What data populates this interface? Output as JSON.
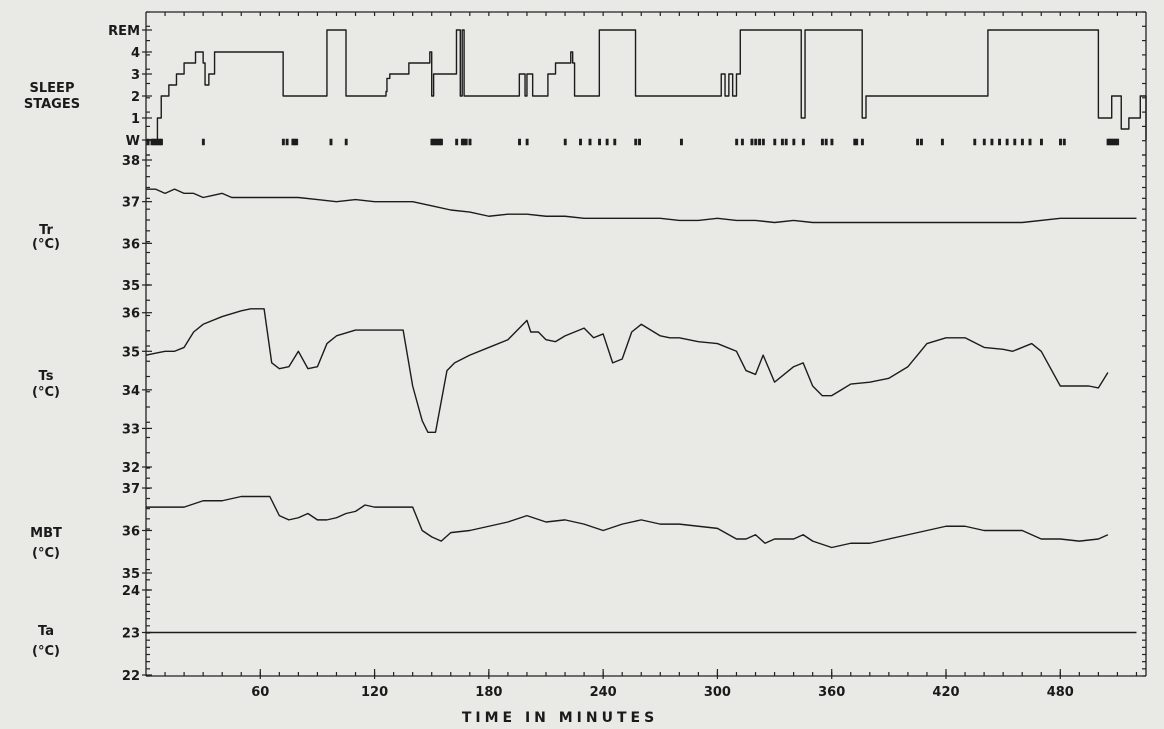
{
  "chart_data": {
    "type": "line",
    "xlabel": "TIME IN MINUTES",
    "xlim": [
      0,
      525
    ],
    "xticks": [
      60,
      120,
      180,
      240,
      300,
      360,
      420,
      480
    ],
    "panels": [
      {
        "id": "sleep",
        "label_lines": [
          "SLEEP",
          "STAGES"
        ],
        "ytick_labels": [
          "W",
          "1",
          "2",
          "3",
          "4",
          "REM"
        ],
        "ylim": [
          0,
          5
        ],
        "series": [
          {
            "name": "",
            "step": true,
            "x": [
              0,
              6,
              8,
              12,
              16,
              20,
              26,
              30,
              31,
              33,
              36,
              43,
              72,
              73,
              95,
              100,
              105,
              125,
              126,
              126.5,
              128,
              134,
              138,
              149,
              150,
              151,
              155,
              163,
              165,
              166,
              167,
              195,
              196,
              199,
              200,
              203,
              211,
              215,
              223,
              224,
              225,
              227,
              238,
              257,
              300,
              302,
              304,
              306,
              308,
              310,
              312,
              342,
              344,
              346,
              372,
              376,
              378,
              418,
              422,
              442,
              496,
              500,
              507,
              510,
              512,
              516,
              522,
              525
            ],
            "y": [
              0,
              1,
              2,
              2.5,
              3,
              3.5,
              4,
              3.5,
              2.5,
              3,
              4,
              4,
              2,
              2,
              5,
              5,
              2,
              2,
              2.2,
              2.8,
              3,
              3,
              3.5,
              4,
              2,
              3,
              3,
              5,
              2,
              5,
              2,
              2,
              3,
              2,
              3,
              2,
              3,
              3.5,
              4,
              3.5,
              2,
              2,
              5,
              2,
              2,
              3,
              2,
              3,
              2,
              3,
              5,
              5,
              1,
              5,
              5,
              1,
              2,
              2,
              2,
              5,
              5,
              1,
              2,
              2,
              0.5,
              1,
              2,
              0
            ]
          }
        ]
      },
      {
        "id": "tr",
        "label_lines": [
          "Tr",
          "(°C)"
        ],
        "ylim": [
          35,
          38
        ],
        "ytick_labels": [
          "35",
          "36",
          "37",
          "38"
        ],
        "yticks": [
          35,
          36,
          37,
          38
        ],
        "series": [
          {
            "name": "",
            "x": [
              0,
              5,
              10,
              15,
              20,
              25,
              30,
              35,
              40,
              45,
              50,
              60,
              70,
              80,
              90,
              100,
              110,
              120,
              130,
              140,
              150,
              160,
              170,
              180,
              190,
              200,
              210,
              220,
              230,
              240,
              250,
              260,
              270,
              280,
              290,
              300,
              310,
              320,
              330,
              340,
              350,
              360,
              370,
              380,
              400,
              420,
              440,
              460,
              480,
              500,
              520
            ],
            "y": [
              37.3,
              37.3,
              37.2,
              37.3,
              37.2,
              37.2,
              37.1,
              37.15,
              37.2,
              37.1,
              37.1,
              37.1,
              37.1,
              37.1,
              37.05,
              37.0,
              37.05,
              37.0,
              37.0,
              37.0,
              36.9,
              36.8,
              36.75,
              36.65,
              36.7,
              36.7,
              36.65,
              36.65,
              36.6,
              36.6,
              36.6,
              36.6,
              36.6,
              36.55,
              36.55,
              36.6,
              36.55,
              36.55,
              36.5,
              36.55,
              36.5,
              36.5,
              36.5,
              36.5,
              36.5,
              36.5,
              36.5,
              36.5,
              36.6,
              36.6,
              36.6
            ]
          }
        ]
      },
      {
        "id": "ts",
        "label_lines": [
          "Ts",
          "(°C)"
        ],
        "ylim": [
          32,
          36.2
        ],
        "ytick_labels": [
          "32",
          "33",
          "34",
          "35",
          "36"
        ],
        "yticks": [
          32,
          33,
          34,
          35,
          36
        ],
        "series": [
          {
            "name": "",
            "x": [
              0,
              5,
              10,
              15,
              20,
              25,
              30,
              40,
              50,
              55,
              60,
              62,
              66,
              70,
              75,
              80,
              85,
              90,
              95,
              100,
              110,
              120,
              130,
              135,
              140,
              145,
              148,
              152,
              158,
              162,
              170,
              180,
              190,
              200,
              202,
              206,
              210,
              215,
              220,
              225,
              230,
              235,
              240,
              245,
              250,
              255,
              260,
              270,
              275,
              280,
              290,
              300,
              310,
              315,
              320,
              324,
              330,
              340,
              345,
              350,
              355,
              360,
              365,
              370,
              380,
              390,
              400,
              405,
              410,
              420,
              430,
              440,
              450,
              455,
              460,
              465,
              470,
              480,
              490,
              495,
              500,
              505
            ],
            "y": [
              34.9,
              34.95,
              35.0,
              35.0,
              35.1,
              35.5,
              35.7,
              35.9,
              36.05,
              36.1,
              36.1,
              36.1,
              34.7,
              34.55,
              34.6,
              35.0,
              34.55,
              34.6,
              35.2,
              35.4,
              35.55,
              35.55,
              35.55,
              35.55,
              34.1,
              33.2,
              32.9,
              32.9,
              34.5,
              34.7,
              34.9,
              35.1,
              35.3,
              35.8,
              35.5,
              35.5,
              35.3,
              35.25,
              35.4,
              35.5,
              35.6,
              35.35,
              35.45,
              34.7,
              34.8,
              35.5,
              35.7,
              35.4,
              35.35,
              35.35,
              35.25,
              35.2,
              35.0,
              34.5,
              34.4,
              34.9,
              34.2,
              34.6,
              34.7,
              34.1,
              33.85,
              33.85,
              34.0,
              34.15,
              34.2,
              34.3,
              34.6,
              34.9,
              35.2,
              35.35,
              35.35,
              35.1,
              35.05,
              35.0,
              35.1,
              35.2,
              35.0,
              34.1,
              34.1,
              34.1,
              34.05,
              34.45
            ]
          }
        ]
      },
      {
        "id": "mbt",
        "label_lines": [
          "MBT",
          "(°C)"
        ],
        "ylim": [
          35,
          37
        ],
        "ytick_labels": [
          "35",
          "36",
          "37"
        ],
        "yticks": [
          35,
          36,
          37
        ],
        "series": [
          {
            "name": "",
            "x": [
              0,
              10,
              20,
              30,
              40,
              50,
              60,
              65,
              70,
              75,
              80,
              85,
              90,
              95,
              100,
              105,
              110,
              115,
              120,
              125,
              130,
              140,
              145,
              150,
              155,
              160,
              170,
              180,
              190,
              200,
              210,
              220,
              230,
              240,
              250,
              260,
              270,
              280,
              290,
              300,
              310,
              315,
              320,
              325,
              330,
              340,
              345,
              350,
              360,
              370,
              380,
              390,
              400,
              410,
              420,
              430,
              440,
              450,
              460,
              470,
              480,
              490,
              500,
              505
            ],
            "y": [
              36.55,
              36.55,
              36.55,
              36.7,
              36.7,
              36.8,
              36.8,
              36.8,
              36.35,
              36.25,
              36.3,
              36.4,
              36.25,
              36.25,
              36.3,
              36.4,
              36.45,
              36.6,
              36.55,
              36.55,
              36.55,
              36.55,
              36.0,
              35.85,
              35.75,
              35.95,
              36.0,
              36.1,
              36.2,
              36.35,
              36.2,
              36.25,
              36.15,
              36.0,
              36.15,
              36.25,
              36.15,
              36.15,
              36.1,
              36.05,
              35.8,
              35.8,
              35.9,
              35.7,
              35.8,
              35.8,
              35.9,
              35.75,
              35.6,
              35.7,
              35.7,
              35.8,
              35.9,
              36.0,
              36.1,
              36.1,
              36.0,
              36.0,
              36.0,
              35.8,
              35.8,
              35.75,
              35.8,
              35.9
            ]
          }
        ]
      },
      {
        "id": "ta",
        "label_lines": [
          "Ta",
          "(°C)"
        ],
        "ylim": [
          22,
          24
        ],
        "ytick_labels": [
          "22",
          "23",
          "24"
        ],
        "yticks": [
          22,
          23,
          24
        ],
        "series": [
          {
            "name": "",
            "x": [
              0,
              520
            ],
            "y": [
              23,
              23
            ]
          }
        ]
      }
    ],
    "wake_markers": [
      1,
      3,
      4,
      5,
      6,
      7,
      8,
      30,
      72,
      74,
      77,
      78,
      79,
      97,
      105,
      150,
      151,
      152,
      153,
      154,
      155,
      163,
      166,
      167,
      168,
      170,
      196,
      200,
      220,
      228,
      233,
      238,
      242,
      246,
      257,
      259,
      281,
      310,
      313,
      318,
      320,
      322,
      324,
      330,
      334,
      336,
      340,
      345,
      355,
      357,
      360,
      372,
      373,
      376,
      405,
      407,
      418,
      435,
      440,
      444,
      448,
      452,
      456,
      460,
      464,
      470,
      480,
      482,
      505,
      506,
      507,
      508,
      509,
      510
    ]
  }
}
